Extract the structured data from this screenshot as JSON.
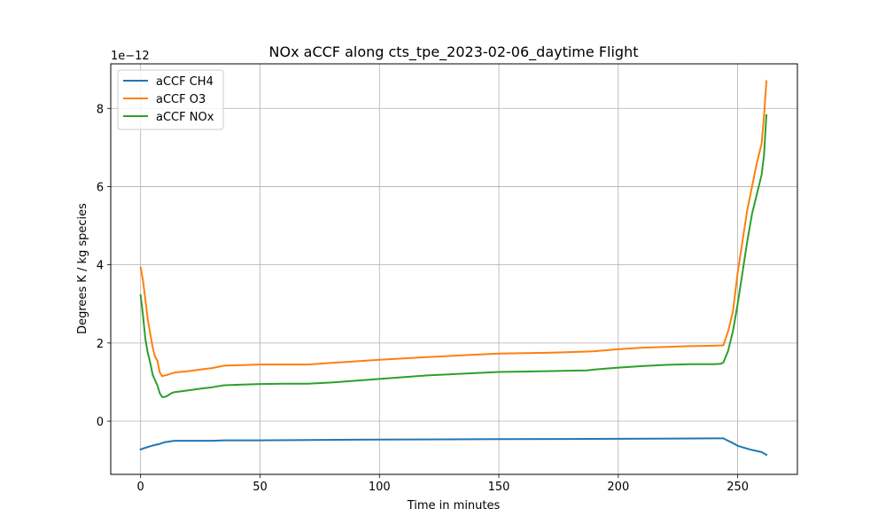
{
  "chart_data": {
    "type": "line",
    "title": "NOx aCCF along cts_tpe_2023-02-06_daytime Flight",
    "xlabel": "Time in minutes",
    "ylabel": "Degrees K / kg species",
    "y_scale_note": "1e−12",
    "xlim": [
      -12.5,
      275
    ],
    "ylim": [
      -1.36,
      9.14
    ],
    "x_ticks": [
      0,
      50,
      100,
      150,
      200,
      250
    ],
    "y_ticks": [
      0,
      2,
      4,
      6,
      8
    ],
    "grid": true,
    "legend_position": "top-left",
    "series": [
      {
        "name": "aCCF CH4",
        "color": "#1f77b4",
        "x": [
          0,
          2,
          4,
          6,
          8,
          10,
          12,
          14,
          20,
          30,
          35,
          50,
          70,
          100,
          150,
          200,
          240,
          244,
          246,
          248,
          250,
          255,
          260,
          262
        ],
        "y": [
          -0.72,
          -0.68,
          -0.64,
          -0.61,
          -0.58,
          -0.54,
          -0.52,
          -0.5,
          -0.5,
          -0.5,
          -0.49,
          -0.49,
          -0.48,
          -0.47,
          -0.46,
          -0.45,
          -0.44,
          -0.44,
          -0.5,
          -0.56,
          -0.63,
          -0.72,
          -0.79,
          -0.86
        ]
      },
      {
        "name": "aCCF O3",
        "color": "#ff7f0e",
        "x": [
          0,
          1,
          2,
          3,
          4,
          5,
          6,
          7,
          8,
          9,
          10,
          11,
          12,
          13,
          14,
          15,
          20,
          25,
          30,
          35,
          40,
          50,
          60,
          70,
          80,
          100,
          120,
          150,
          170,
          187,
          190,
          200,
          210,
          220,
          230,
          240,
          244,
          246,
          248,
          250,
          252,
          254,
          256,
          258,
          260,
          261,
          262
        ],
        "y": [
          3.93,
          3.6,
          3.1,
          2.6,
          2.25,
          1.9,
          1.65,
          1.55,
          1.25,
          1.15,
          1.17,
          1.18,
          1.2,
          1.22,
          1.24,
          1.25,
          1.28,
          1.32,
          1.36,
          1.42,
          1.43,
          1.45,
          1.45,
          1.45,
          1.49,
          1.57,
          1.64,
          1.73,
          1.75,
          1.78,
          1.79,
          1.84,
          1.88,
          1.9,
          1.92,
          1.93,
          1.94,
          2.3,
          2.8,
          3.8,
          4.6,
          5.4,
          6.0,
          6.6,
          7.1,
          7.8,
          8.7
        ]
      },
      {
        "name": "aCCF NOx",
        "color": "#2ca02c",
        "x": [
          0,
          1,
          2,
          3,
          4,
          5,
          6,
          7,
          8,
          9,
          10,
          11,
          12,
          13,
          14,
          15,
          20,
          25,
          30,
          35,
          40,
          50,
          60,
          70,
          80,
          100,
          120,
          150,
          170,
          187,
          190,
          200,
          210,
          220,
          230,
          240,
          243,
          244,
          246,
          248,
          250,
          252,
          254,
          256,
          258,
          260,
          261,
          262
        ],
        "y": [
          3.22,
          2.7,
          2.1,
          1.75,
          1.5,
          1.2,
          1.05,
          0.92,
          0.72,
          0.62,
          0.62,
          0.64,
          0.68,
          0.72,
          0.74,
          0.75,
          0.79,
          0.83,
          0.87,
          0.92,
          0.93,
          0.95,
          0.96,
          0.96,
          0.99,
          1.08,
          1.17,
          1.26,
          1.28,
          1.3,
          1.32,
          1.37,
          1.41,
          1.44,
          1.46,
          1.46,
          1.47,
          1.5,
          1.8,
          2.3,
          3.0,
          3.8,
          4.6,
          5.3,
          5.8,
          6.3,
          6.8,
          7.83
        ]
      }
    ]
  }
}
